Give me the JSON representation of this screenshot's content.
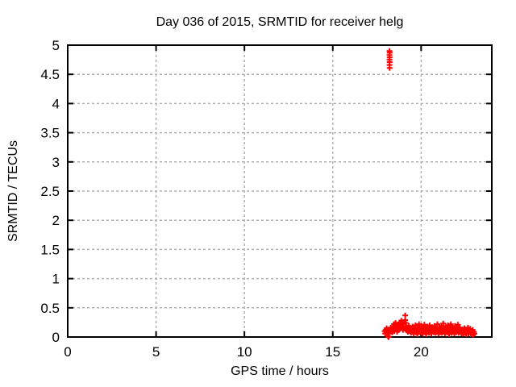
{
  "chart_data": {
    "type": "scatter",
    "title": "Day 036 of 2015, SRMTID for receiver helg",
    "xlabel": "GPS time / hours",
    "ylabel": "SRMTID / TECUs",
    "xlim": [
      0,
      24
    ],
    "ylim": [
      0,
      5
    ],
    "xticks": [
      0,
      5,
      10,
      15,
      20
    ],
    "xtick_labels": [
      "0",
      "5",
      "10",
      "15",
      "20"
    ],
    "yticks": [
      0,
      0.5,
      1,
      1.5,
      2,
      2.5,
      3,
      3.5,
      4,
      4.5,
      5
    ],
    "ytick_labels": [
      "0",
      "0.5",
      "1",
      "1.5",
      "2",
      "2.5",
      "3",
      "3.5",
      "4",
      "4.5",
      "5"
    ],
    "grid": true,
    "grid_style": "dashed",
    "legend": "none",
    "marker": "plus",
    "marker_color": "#ff0000",
    "grid_color": "#b0b0b0",
    "axis_color": "#000000",
    "background": "#ffffff",
    "series": [
      {
        "name": "SRMTID",
        "points": [
          [
            18.21,
            4.9
          ],
          [
            18.22,
            4.87
          ],
          [
            18.21,
            4.83
          ],
          [
            18.22,
            4.79
          ],
          [
            18.21,
            4.75
          ],
          [
            18.22,
            4.71
          ],
          [
            18.21,
            4.66
          ],
          [
            18.22,
            4.61
          ],
          [
            17.93,
            0.1
          ],
          [
            17.96,
            0.06
          ],
          [
            17.99,
            0.12
          ],
          [
            18.02,
            0.08
          ],
          [
            18.05,
            0.15
          ],
          [
            18.08,
            0.05
          ],
          [
            18.11,
            0.1
          ],
          [
            18.13,
            0.01
          ],
          [
            18.16,
            0.0
          ],
          [
            18.19,
            0.06
          ],
          [
            18.22,
            0.13
          ],
          [
            18.25,
            0.09
          ],
          [
            18.28,
            0.16
          ],
          [
            18.31,
            0.11
          ],
          [
            18.34,
            0.14
          ],
          [
            18.37,
            0.08
          ],
          [
            18.4,
            0.18
          ],
          [
            18.43,
            0.12
          ],
          [
            18.46,
            0.22
          ],
          [
            18.49,
            0.1
          ],
          [
            18.52,
            0.16
          ],
          [
            18.55,
            0.24
          ],
          [
            18.58,
            0.13
          ],
          [
            18.61,
            0.19
          ],
          [
            18.64,
            0.09
          ],
          [
            18.67,
            0.15
          ],
          [
            18.7,
            0.21
          ],
          [
            18.73,
            0.12
          ],
          [
            18.76,
            0.17
          ],
          [
            18.79,
            0.25
          ],
          [
            18.82,
            0.14
          ],
          [
            18.85,
            0.2
          ],
          [
            18.88,
            0.28
          ],
          [
            18.91,
            0.16
          ],
          [
            18.94,
            0.22
          ],
          [
            18.97,
            0.12
          ],
          [
            19.0,
            0.18
          ],
          [
            19.03,
            0.26
          ],
          [
            19.06,
            0.15
          ],
          [
            19.1,
            0.37
          ],
          [
            19.1,
            0.29
          ],
          [
            19.13,
            0.24
          ],
          [
            19.16,
            0.17
          ],
          [
            19.19,
            0.11
          ],
          [
            19.22,
            0.16
          ],
          [
            19.25,
            0.09
          ],
          [
            19.28,
            0.14
          ],
          [
            19.31,
            0.19
          ],
          [
            19.34,
            0.12
          ],
          [
            19.37,
            0.16
          ],
          [
            19.4,
            0.1
          ],
          [
            19.42,
            0.07
          ],
          [
            19.45,
            0.14
          ],
          [
            19.48,
            0.09
          ],
          [
            19.52,
            0.18
          ],
          [
            19.55,
            0.12
          ],
          [
            19.58,
            0.06
          ],
          [
            19.62,
            0.16
          ],
          [
            19.65,
            0.1
          ],
          [
            19.68,
            0.2
          ],
          [
            19.72,
            0.08
          ],
          [
            19.75,
            0.13
          ],
          [
            19.78,
            0.05
          ],
          [
            19.82,
            0.17
          ],
          [
            19.85,
            0.11
          ],
          [
            19.88,
            0.22
          ],
          [
            19.92,
            0.09
          ],
          [
            19.95,
            0.15
          ],
          [
            19.98,
            0.07
          ],
          [
            20.02,
            0.19
          ],
          [
            20.05,
            0.12
          ],
          [
            20.08,
            0.06
          ],
          [
            20.12,
            0.14
          ],
          [
            20.15,
            0.1
          ],
          [
            20.18,
            0.21
          ],
          [
            20.22,
            0.08
          ],
          [
            20.25,
            0.16
          ],
          [
            20.28,
            0.05
          ],
          [
            20.32,
            0.12
          ],
          [
            20.35,
            0.18
          ],
          [
            20.38,
            0.09
          ],
          [
            20.42,
            0.13
          ],
          [
            20.45,
            0.07
          ],
          [
            20.48,
            0.2
          ],
          [
            20.52,
            0.11
          ],
          [
            20.55,
            0.15
          ],
          [
            20.58,
            0.06
          ],
          [
            20.62,
            0.17
          ],
          [
            20.65,
            0.1
          ],
          [
            20.68,
            0.13
          ],
          [
            20.72,
            0.08
          ],
          [
            20.75,
            0.19
          ],
          [
            20.78,
            0.12
          ],
          [
            20.82,
            0.07
          ],
          [
            20.85,
            0.15
          ],
          [
            20.88,
            0.09
          ],
          [
            20.92,
            0.22
          ],
          [
            20.95,
            0.11
          ],
          [
            20.98,
            0.06
          ],
          [
            21.02,
            0.1
          ],
          [
            21.05,
            0.16
          ],
          [
            21.08,
            0.08
          ],
          [
            21.12,
            0.13
          ],
          [
            21.15,
            0.19
          ],
          [
            21.18,
            0.07
          ],
          [
            21.22,
            0.12
          ],
          [
            21.25,
            0.23
          ],
          [
            21.28,
            0.09
          ],
          [
            21.32,
            0.15
          ],
          [
            21.35,
            0.06
          ],
          [
            21.38,
            0.18
          ],
          [
            21.42,
            0.11
          ],
          [
            21.45,
            0.14
          ],
          [
            21.48,
            0.08
          ],
          [
            21.52,
            0.2
          ],
          [
            21.55,
            0.12
          ],
          [
            21.58,
            0.05
          ],
          [
            21.62,
            0.16
          ],
          [
            21.65,
            0.1
          ],
          [
            21.68,
            0.22
          ],
          [
            21.72,
            0.07
          ],
          [
            21.75,
            0.13
          ],
          [
            21.78,
            0.17
          ],
          [
            21.82,
            0.09
          ],
          [
            21.85,
            0.14
          ],
          [
            21.88,
            0.06
          ],
          [
            21.92,
            0.19
          ],
          [
            21.95,
            0.11
          ],
          [
            21.98,
            0.08
          ],
          [
            22.02,
            0.15
          ],
          [
            22.05,
            0.1
          ],
          [
            22.08,
            0.21
          ],
          [
            22.12,
            0.07
          ],
          [
            22.15,
            0.12
          ],
          [
            22.18,
            0.16
          ],
          [
            22.22,
            0.09
          ],
          [
            22.25,
            0.13
          ],
          [
            22.28,
            0.06
          ],
          [
            22.32,
            0.08
          ],
          [
            22.35,
            0.13
          ],
          [
            22.38,
            0.06
          ],
          [
            22.42,
            0.11
          ],
          [
            22.45,
            0.15
          ],
          [
            22.48,
            0.07
          ],
          [
            22.52,
            0.1
          ],
          [
            22.55,
            0.05
          ],
          [
            22.58,
            0.13
          ],
          [
            22.62,
            0.09
          ],
          [
            22.65,
            0.16
          ],
          [
            22.68,
            0.06
          ],
          [
            22.72,
            0.11
          ],
          [
            22.75,
            0.08
          ],
          [
            22.78,
            0.14
          ],
          [
            22.82,
            0.05
          ],
          [
            22.85,
            0.1
          ],
          [
            22.88,
            0.07
          ],
          [
            22.92,
            0.12
          ],
          [
            22.95,
            0.04
          ],
          [
            22.98,
            0.09
          ],
          [
            23.02,
            0.06
          ]
        ]
      }
    ]
  }
}
